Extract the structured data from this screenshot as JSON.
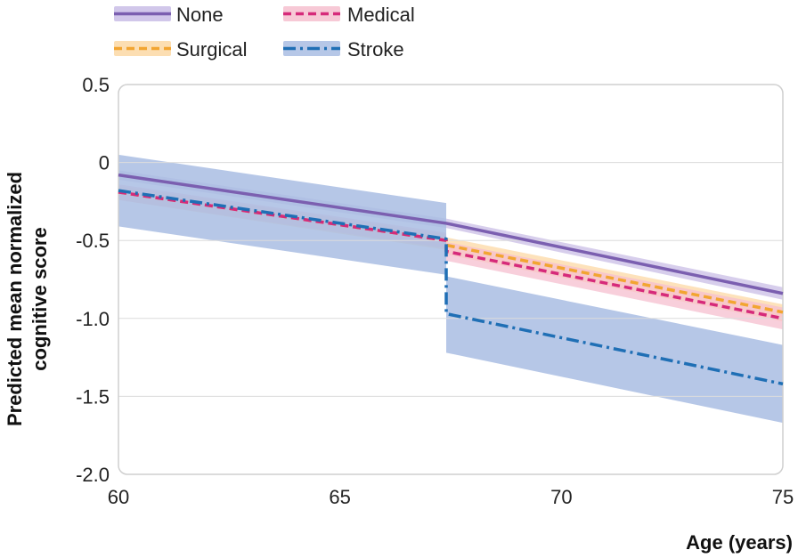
{
  "chart_data": {
    "type": "line",
    "xlabel": "Age (years)",
    "ylabel": "Predicted mean normalized cognitive score",
    "ylabel_lines": [
      "Predicted mean normalized",
      "cognitive score"
    ],
    "xlim": [
      60,
      75
    ],
    "ylim": [
      -2.0,
      0.5
    ],
    "x_ticks": [
      60,
      65,
      70,
      75
    ],
    "x_tick_labels": [
      "60",
      "65",
      "70",
      "75"
    ],
    "y_ticks": [
      0.5,
      0,
      -0.5,
      -1.0,
      -1.5,
      -2.0
    ],
    "y_tick_labels": [
      "0.5",
      "0",
      "-0.5",
      "-1.0",
      "-1.5",
      "-2.0"
    ],
    "grid": "horizontal",
    "legend_position": "top",
    "event_age": 67.4,
    "series": [
      {
        "name": "None",
        "color": "#7b5fb0",
        "band_color": "#c9bde6",
        "style": "solid",
        "points": [
          [
            60,
            -0.08
          ],
          [
            67.4,
            -0.39
          ],
          [
            75,
            -0.84
          ]
        ],
        "band_upper": [
          [
            60,
            -0.05
          ],
          [
            67.4,
            -0.36
          ],
          [
            75,
            -0.8
          ]
        ],
        "band_lower": [
          [
            60,
            -0.11
          ],
          [
            67.4,
            -0.42
          ],
          [
            75,
            -0.88
          ]
        ]
      },
      {
        "name": "Medical",
        "color": "#d62a7a",
        "band_color": "#f6bfcf",
        "style": "dashed",
        "points": [
          [
            60,
            -0.19
          ],
          [
            67.4,
            -0.5
          ],
          [
            67.4,
            -0.57
          ],
          [
            75,
            -1.0
          ]
        ],
        "band_upper": [
          [
            60,
            -0.14
          ],
          [
            67.4,
            -0.45
          ],
          [
            67.4,
            -0.51
          ],
          [
            75,
            -0.93
          ]
        ],
        "band_lower": [
          [
            60,
            -0.24
          ],
          [
            67.4,
            -0.55
          ],
          [
            67.4,
            -0.63
          ],
          [
            75,
            -1.07
          ]
        ]
      },
      {
        "name": "Surgical",
        "color": "#f2a531",
        "band_color": "#fcd8a4",
        "style": "dashed",
        "points": [
          [
            60,
            -0.19
          ],
          [
            67.4,
            -0.5
          ],
          [
            67.4,
            -0.53
          ],
          [
            75,
            -0.96
          ]
        ],
        "band_upper": [
          [
            60,
            -0.15
          ],
          [
            67.4,
            -0.46
          ],
          [
            67.4,
            -0.48
          ],
          [
            75,
            -0.91
          ]
        ],
        "band_lower": [
          [
            60,
            -0.24
          ],
          [
            67.4,
            -0.56
          ],
          [
            67.4,
            -0.59
          ],
          [
            75,
            -1.02
          ]
        ]
      },
      {
        "name": "Stroke",
        "color": "#1f6fb5",
        "band_color": "#a9bde3",
        "style": "dashdot",
        "points": [
          [
            60,
            -0.18
          ],
          [
            67.4,
            -0.49
          ],
          [
            67.4,
            -0.97
          ],
          [
            75,
            -1.42
          ]
        ],
        "band_upper": [
          [
            60,
            0.05
          ],
          [
            67.4,
            -0.26
          ],
          [
            67.4,
            -0.73
          ],
          [
            75,
            -1.17
          ]
        ],
        "band_lower": [
          [
            60,
            -0.41
          ],
          [
            67.4,
            -0.72
          ],
          [
            67.4,
            -1.22
          ],
          [
            75,
            -1.67
          ]
        ]
      }
    ]
  }
}
